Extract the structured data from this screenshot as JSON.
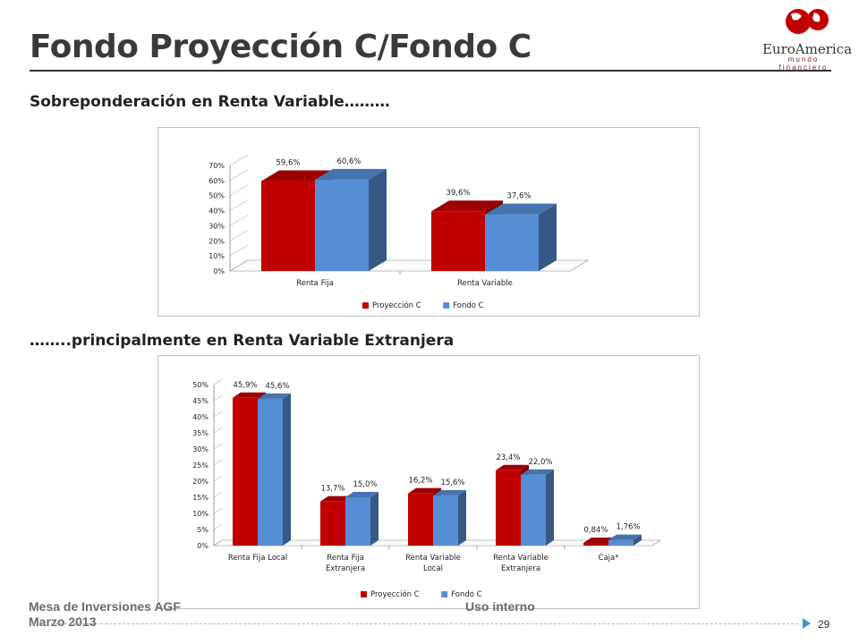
{
  "header": {
    "title": "Fondo Proyección C/Fondo C",
    "logo_name": "EuroAmerica",
    "logo_tagline": "mundo financiero"
  },
  "section1": {
    "subtitle": "Sobreponderación en Renta Variable………"
  },
  "section2": {
    "subtitle": "……..principalmente en Renta Variable Extranjera"
  },
  "footer": {
    "left_line1": "Mesa de Inversiones AGF",
    "left_line2": "Marzo 2013",
    "middle": "Uso interno",
    "page_number": "29"
  },
  "colors": {
    "series1": "#c00000",
    "series2": "#558ed5"
  },
  "chart_data": [
    {
      "type": "bar",
      "categories": [
        "Renta Fija",
        "Renta Variable"
      ],
      "series": [
        {
          "name": "Proyección C",
          "values": [
            59.6,
            39.6
          ],
          "labels": [
            "59,6%",
            "39,6%"
          ]
        },
        {
          "name": "Fondo C",
          "values": [
            60.6,
            37.6
          ],
          "labels": [
            "60,6%",
            "37,6%"
          ]
        }
      ],
      "ylim": [
        0,
        70
      ],
      "yticks": [
        "0%",
        "10%",
        "20%",
        "30%",
        "40%",
        "50%",
        "60%",
        "70%"
      ],
      "legend": "bottom"
    },
    {
      "type": "bar",
      "categories": [
        [
          "Renta Fija Local"
        ],
        [
          "Renta Fija",
          "Extranjera"
        ],
        [
          "Renta Variable",
          "Local"
        ],
        [
          "Renta Variable",
          "Extranjera"
        ],
        [
          "Caja*"
        ]
      ],
      "series": [
        {
          "name": "Proyección C",
          "values": [
            45.9,
            13.7,
            16.2,
            23.4,
            0.84
          ],
          "labels": [
            "45,9%",
            "13,7%",
            "16,2%",
            "23,4%",
            "0,84%"
          ]
        },
        {
          "name": "Fondo C",
          "values": [
            45.6,
            15.0,
            15.6,
            22.0,
            1.76
          ],
          "labels": [
            "45,6%",
            "15,0%",
            "15,6%",
            "22,0%",
            "1,76%"
          ]
        }
      ],
      "ylim": [
        0,
        50
      ],
      "yticks": [
        "0%",
        "5%",
        "10%",
        "15%",
        "20%",
        "25%",
        "30%",
        "35%",
        "40%",
        "45%",
        "50%"
      ],
      "legend": "bottom"
    }
  ]
}
